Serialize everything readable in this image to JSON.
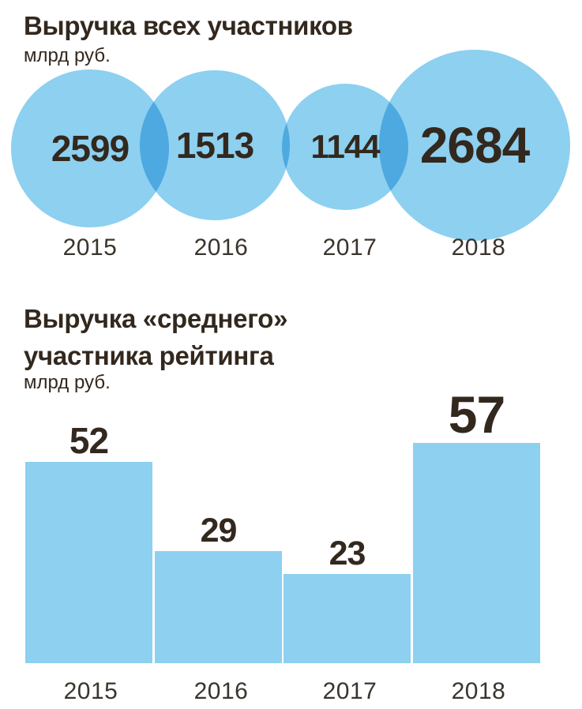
{
  "colors": {
    "bubble_fill": "#8DD0F0",
    "bar_fill": "#8DD0F0",
    "overlap_fill": "#4EA9E1",
    "title_text": "#33281E",
    "number_text": "#33281E",
    "year_text": "#3A342D",
    "background": "#FFFFFF"
  },
  "chart_data": [
    {
      "type": "bubble",
      "title": "Выручка всех участников",
      "unit": "млрд руб.",
      "categories": [
        "2015",
        "2016",
        "2017",
        "2018"
      ],
      "values": [
        2599,
        1513,
        1144,
        2684
      ],
      "legend": "none",
      "grid": false,
      "notes": "four overlapping light-blue circles in a row; intersections render darker blue; value printed inside each circle, year below"
    },
    {
      "type": "bar",
      "title": "Выручка «среднего» участника рейтинга",
      "title_lines": [
        "Выручка «среднего»",
        "участника рейтинга"
      ],
      "unit": "млрд руб.",
      "categories": [
        "2015",
        "2016",
        "2017",
        "2018"
      ],
      "values": [
        52,
        29,
        23,
        57
      ],
      "ylim": [
        0,
        57
      ],
      "legend": "none",
      "grid": false,
      "notes": "value printed above each bar; year below each bar; no axes or gridlines"
    }
  ]
}
